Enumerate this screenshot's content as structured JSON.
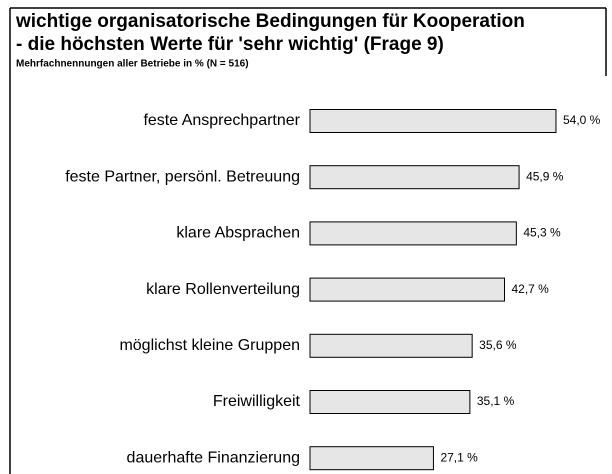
{
  "chart_data": {
    "type": "hbar",
    "title": "wichtige organisatorische Bedingungen für Kooperation",
    "subtitle": "- die höchsten Werte für 'sehr wichtig' (Frage 9)",
    "note": "Mehrfachnennungen aller Betriebe in % (N = 516)",
    "categories": [
      "feste Ansprechpartner",
      "feste Partner, persönl. Betreuung",
      "klare Absprachen",
      "klare Rollenverteilung",
      "möglichst kleine Gruppen",
      "Freiwilligkeit",
      "dauerhafte Finanzierung"
    ],
    "values": [
      54.0,
      45.9,
      45.3,
      42.7,
      35.6,
      35.1,
      27.1
    ],
    "value_labels": [
      "54,0 %",
      "45,9 %",
      "45,3 %",
      "42,7 %",
      "35,6 %",
      "35,1 %",
      "27,1 %"
    ],
    "color": "#e6e6e6"
  }
}
